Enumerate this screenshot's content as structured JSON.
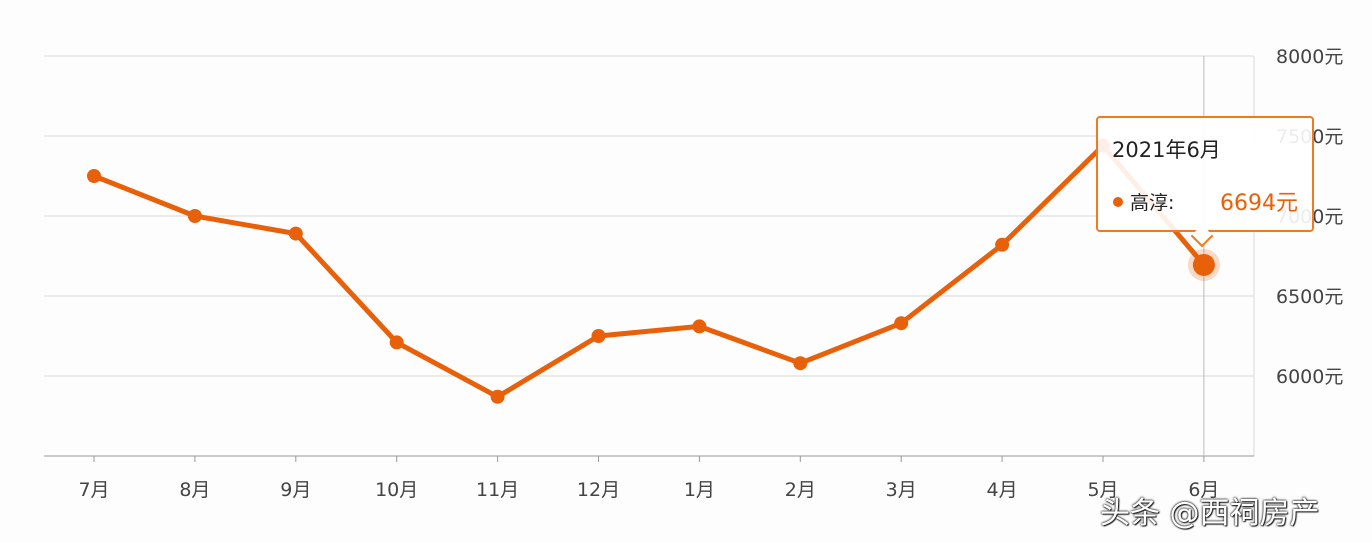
{
  "chart_data": {
    "type": "line",
    "categories": [
      "7月",
      "8月",
      "9月",
      "10月",
      "11月",
      "12月",
      "1月",
      "2月",
      "3月",
      "4月",
      "5月",
      "6月"
    ],
    "series": [
      {
        "name": "高淳",
        "values": [
          7250,
          7000,
          6890,
          6210,
          5870,
          6250,
          6310,
          6080,
          6330,
          6820,
          7440,
          6694
        ]
      }
    ],
    "ylim": [
      5500,
      8000
    ],
    "yticks": [
      "8000元",
      "7500元",
      "7000元",
      "6500元",
      "6000元"
    ],
    "ytick_values": [
      8000,
      7500,
      7000,
      6500,
      6000
    ],
    "y_axis_side": "right",
    "grid": true,
    "colors": {
      "line": "#e8600a",
      "marker": "#e8600a",
      "grid": "#d9d9d9",
      "tooltip_border": "#f07a20"
    }
  },
  "tooltip": {
    "title": "2021年6月",
    "series_label": "高淳:",
    "value": "6694元",
    "highlighted_index": 11
  },
  "watermark": "头条 @西祠房产"
}
